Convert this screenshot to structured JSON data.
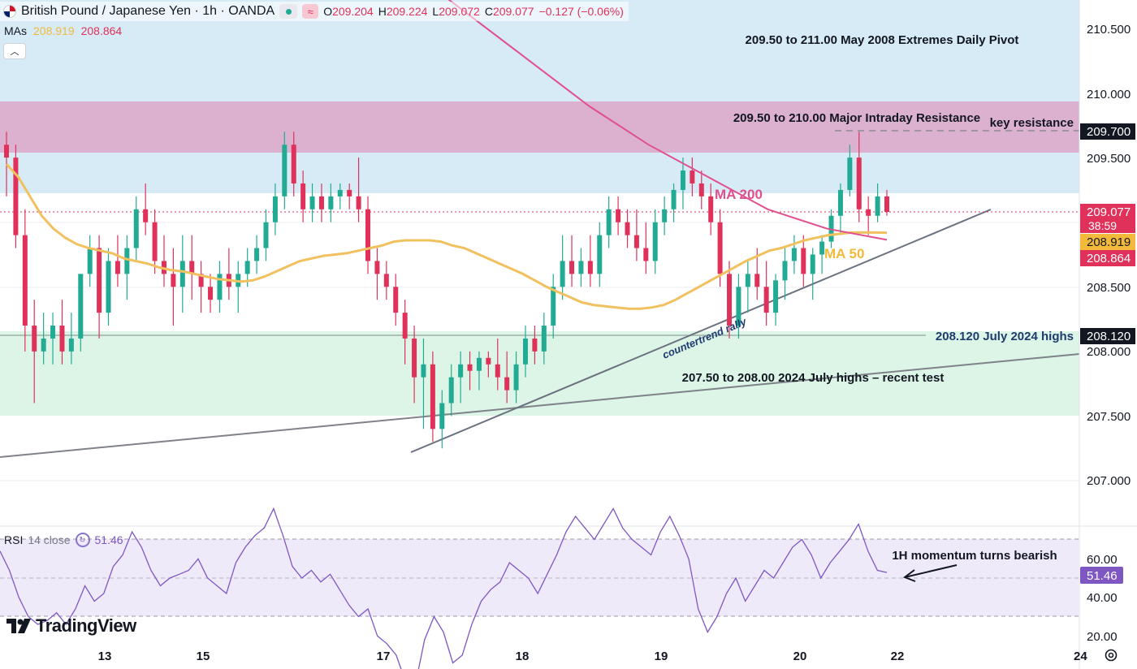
{
  "header": {
    "symbol": "British Pound / Japanese Yen · 1h · OANDA",
    "flag_icon": "uk-flag-icon",
    "ohlc": [
      {
        "k": "O",
        "v": "209.204"
      },
      {
        "k": "H",
        "v": "209.224"
      },
      {
        "k": "L",
        "v": "209.072"
      },
      {
        "k": "C",
        "v": "209.077"
      }
    ],
    "change": "−0.127 (−0.06%)"
  },
  "mas": {
    "label": "MAs",
    "ma50_value": "208.919",
    "ma200_value": "208.864"
  },
  "rsi": {
    "label": "RSI",
    "params": "14 close",
    "value": "51.46"
  },
  "brand": "TradingView",
  "colors": {
    "up": "#22ab94",
    "down": "#e0315a",
    "ma50": "#f2c15f",
    "ma200": "#e0508e",
    "rsi": "#7e57c2",
    "blue_zone": "#d6ebf5",
    "pink_zone": "#dbb1cf",
    "green_zone": "#dcf5e7"
  },
  "chart_data": [
    {
      "type": "candlestick",
      "title": "British Pound / Japanese Yen · 1h · OANDA",
      "ylim": [
        206.6,
        210.75
      ],
      "x_tick_labels": [
        "13",
        "15",
        "17",
        "18",
        "19",
        "20",
        "22",
        "24"
      ],
      "y_tick_labels": [
        "210.500",
        "210.000",
        "209.500",
        "208.500",
        "208.000",
        "207.500",
        "207.000"
      ],
      "grid": true,
      "candle_series": [
        [
          209.6,
          209.7,
          209.2,
          209.5
        ],
        [
          209.5,
          209.6,
          208.8,
          208.9
        ],
        [
          208.9,
          209.1,
          208.0,
          208.2
        ],
        [
          208.2,
          208.4,
          207.6,
          208.0
        ],
        [
          208.0,
          208.3,
          207.9,
          208.1
        ],
        [
          208.1,
          208.3,
          207.9,
          208.2
        ],
        [
          208.2,
          208.4,
          207.9,
          208.0
        ],
        [
          208.0,
          208.3,
          207.9,
          208.1
        ],
        [
          208.1,
          208.6,
          208.0,
          208.6
        ],
        [
          208.6,
          208.9,
          208.5,
          208.8
        ],
        [
          208.8,
          208.9,
          208.1,
          208.3
        ],
        [
          208.3,
          208.8,
          208.2,
          208.7
        ],
        [
          208.7,
          208.9,
          208.5,
          208.6
        ],
        [
          208.6,
          208.9,
          208.4,
          208.8
        ],
        [
          208.8,
          209.2,
          208.7,
          209.1
        ],
        [
          209.1,
          209.3,
          208.9,
          209.0
        ],
        [
          209.0,
          209.1,
          208.6,
          208.7
        ],
        [
          208.7,
          208.9,
          208.5,
          208.6
        ],
        [
          208.6,
          208.8,
          208.2,
          208.5
        ],
        [
          208.5,
          208.9,
          208.3,
          208.7
        ],
        [
          208.7,
          208.9,
          208.4,
          208.6
        ],
        [
          208.6,
          208.7,
          208.3,
          208.5
        ],
        [
          208.5,
          208.6,
          208.3,
          208.4
        ],
        [
          208.4,
          208.7,
          208.3,
          208.6
        ],
        [
          208.6,
          208.8,
          208.4,
          208.5
        ],
        [
          208.5,
          208.7,
          208.3,
          208.6
        ],
        [
          208.6,
          208.8,
          208.5,
          208.7
        ],
        [
          208.7,
          208.9,
          208.6,
          208.8
        ],
        [
          208.8,
          209.1,
          208.7,
          209.0
        ],
        [
          209.0,
          209.3,
          208.9,
          209.2
        ],
        [
          209.2,
          209.7,
          209.1,
          209.6
        ],
        [
          209.6,
          209.7,
          209.2,
          209.3
        ],
        [
          209.3,
          209.4,
          209.0,
          209.1
        ],
        [
          209.1,
          209.3,
          209.0,
          209.2
        ],
        [
          209.2,
          209.3,
          209.0,
          209.1
        ],
        [
          209.1,
          209.3,
          209.0,
          209.2
        ],
        [
          209.2,
          209.3,
          209.1,
          209.25
        ],
        [
          209.25,
          209.3,
          209.1,
          209.2
        ],
        [
          209.2,
          209.5,
          209.0,
          209.1
        ],
        [
          209.1,
          209.2,
          208.6,
          208.7
        ],
        [
          208.7,
          208.8,
          208.4,
          208.6
        ],
        [
          208.6,
          208.7,
          208.4,
          208.5
        ],
        [
          208.5,
          208.6,
          208.2,
          208.3
        ],
        [
          208.3,
          208.4,
          207.9,
          208.1
        ],
        [
          208.1,
          208.2,
          207.6,
          207.8
        ],
        [
          207.8,
          208.1,
          207.4,
          207.9
        ],
        [
          207.9,
          208.0,
          207.3,
          207.4
        ],
        [
          207.4,
          207.7,
          207.25,
          207.6
        ],
        [
          207.6,
          207.9,
          207.5,
          207.8
        ],
        [
          207.8,
          208.0,
          207.6,
          207.9
        ],
        [
          207.9,
          208.0,
          207.7,
          207.85
        ],
        [
          207.85,
          208.0,
          207.7,
          207.95
        ],
        [
          207.95,
          208.0,
          207.8,
          207.9
        ],
        [
          207.9,
          208.1,
          207.7,
          207.8
        ],
        [
          207.8,
          208.0,
          207.6,
          207.7
        ],
        [
          207.7,
          208.0,
          207.6,
          207.9
        ],
        [
          207.9,
          208.2,
          207.8,
          208.1
        ],
        [
          208.1,
          208.2,
          207.9,
          208.0
        ],
        [
          208.0,
          208.3,
          207.9,
          208.2
        ],
        [
          208.2,
          208.6,
          208.1,
          208.5
        ],
        [
          208.5,
          208.9,
          208.4,
          208.7
        ],
        [
          208.7,
          208.9,
          208.5,
          208.6
        ],
        [
          208.6,
          208.8,
          208.5,
          208.7
        ],
        [
          208.7,
          208.9,
          208.5,
          208.6
        ],
        [
          208.6,
          209.0,
          208.5,
          208.9
        ],
        [
          208.9,
          209.2,
          208.8,
          209.1
        ],
        [
          209.1,
          209.2,
          208.9,
          209.0
        ],
        [
          209.0,
          209.1,
          208.8,
          208.9
        ],
        [
          208.9,
          209.1,
          208.7,
          208.8
        ],
        [
          208.8,
          209.0,
          208.6,
          208.7
        ],
        [
          208.7,
          209.1,
          208.6,
          209.0
        ],
        [
          209.0,
          209.2,
          208.9,
          209.1
        ],
        [
          209.1,
          209.3,
          209.0,
          209.25
        ],
        [
          209.25,
          209.5,
          209.1,
          209.4
        ],
        [
          209.4,
          209.5,
          209.2,
          209.3
        ],
        [
          209.3,
          209.4,
          209.1,
          209.2
        ],
        [
          209.2,
          209.3,
          208.9,
          209.0
        ],
        [
          209.0,
          209.1,
          208.5,
          208.6
        ],
        [
          208.6,
          208.7,
          208.1,
          208.2
        ],
        [
          208.2,
          208.6,
          208.1,
          208.5
        ],
        [
          208.5,
          208.7,
          208.3,
          208.6
        ],
        [
          208.6,
          208.8,
          208.4,
          208.5
        ],
        [
          208.5,
          208.7,
          208.2,
          208.3
        ],
        [
          208.3,
          208.6,
          208.2,
          208.55
        ],
        [
          208.55,
          208.8,
          208.4,
          208.7
        ],
        [
          208.7,
          208.9,
          208.6,
          208.8
        ],
        [
          208.8,
          208.9,
          208.5,
          208.6
        ],
        [
          208.6,
          208.8,
          208.4,
          208.75
        ],
        [
          208.75,
          208.9,
          208.6,
          208.85
        ],
        [
          208.85,
          209.1,
          208.8,
          209.05
        ],
        [
          209.05,
          209.3,
          208.9,
          209.25
        ],
        [
          209.25,
          209.6,
          209.2,
          209.5
        ],
        [
          209.5,
          209.7,
          209.0,
          209.1
        ],
        [
          209.1,
          209.2,
          208.9,
          209.05
        ],
        [
          209.05,
          209.3,
          209.0,
          209.2
        ],
        [
          209.2,
          209.25,
          209.05,
          209.08
        ]
      ]
    },
    {
      "type": "line",
      "series": [
        {
          "name": "MA 50",
          "values": [
            209.45,
            209.35,
            209.2,
            209.05,
            208.95,
            208.88,
            208.83,
            208.8,
            208.78,
            208.76,
            208.72,
            208.7,
            208.68,
            208.65,
            208.63,
            208.62,
            208.6,
            208.58,
            208.56,
            208.55,
            208.54,
            208.55,
            208.58,
            208.62,
            208.66,
            208.7,
            208.72,
            208.74,
            208.75,
            208.76,
            208.78,
            208.8,
            208.82,
            208.85,
            208.86,
            208.86,
            208.86,
            208.85,
            208.82,
            208.8,
            208.76,
            208.72,
            208.68,
            208.64,
            208.6,
            208.55,
            208.5,
            208.46,
            208.42,
            208.38,
            208.36,
            208.35,
            208.34,
            208.33,
            208.33,
            208.34,
            208.36,
            208.4,
            208.45,
            208.5,
            208.55,
            208.6,
            208.65,
            208.7,
            208.74,
            208.78,
            208.8,
            208.83,
            208.86,
            208.88,
            208.9,
            208.91,
            208.92,
            208.92,
            208.92,
            208.919
          ]
        },
        {
          "name": "MA 200",
          "values": [
            210.95,
            210.6,
            210.25,
            209.9,
            209.6,
            209.35,
            209.1,
            208.95,
            208.864
          ]
        }
      ]
    },
    {
      "type": "line",
      "title": "RSI",
      "ylim": [
        20,
        70
      ],
      "y_tick_labels": [
        "60.00",
        "40.00",
        "20.00"
      ],
      "series": [
        {
          "name": "RSI",
          "values": [
            57,
            52,
            45,
            40,
            38,
            39,
            41,
            38,
            42,
            48,
            44,
            46,
            53,
            56,
            62,
            58,
            52,
            48,
            50,
            51,
            52,
            55,
            50,
            48,
            46,
            54,
            58,
            61,
            63,
            68,
            61,
            53,
            50,
            52,
            49,
            51,
            47,
            43,
            40,
            42,
            35,
            33,
            30,
            23,
            22,
            34,
            40,
            36,
            28,
            30,
            38,
            44,
            47,
            49,
            54,
            52,
            50,
            46,
            51,
            56,
            62,
            66,
            63,
            60,
            64,
            68,
            63,
            60,
            58,
            56,
            62,
            66,
            61,
            55,
            42,
            36,
            40,
            46,
            50,
            44,
            48,
            52,
            50,
            54,
            58,
            60,
            56,
            50,
            54,
            57,
            60,
            64,
            57,
            52,
            51.46
          ]
        }
      ]
    }
  ],
  "annotations": {
    "blue_zone_label": "209.50 to 211.00 May 2008 Extremes Daily Pivot",
    "pink_zone_label": "209.50 to 210.00 Major Intraday Resistance",
    "key_resistance_label": "key resistance",
    "ma200_label": "MA 200",
    "ma50_label": "MA 50",
    "july_highs_label": "208.120 July 2024 highs",
    "green_zone_label": "207.50 to 208.00 2024 July highs – recent test",
    "trendline_label": "countertrend rally",
    "rsi_note": "1H momentum turns bearish"
  },
  "price_axis": {
    "key_resistance_price": "209.700",
    "last_price": "209.077",
    "countdown": "38:59",
    "ma50_price": "208.919",
    "ma200_price": "208.864",
    "july_high_price": "208.120",
    "rsi_price": "51.46"
  }
}
